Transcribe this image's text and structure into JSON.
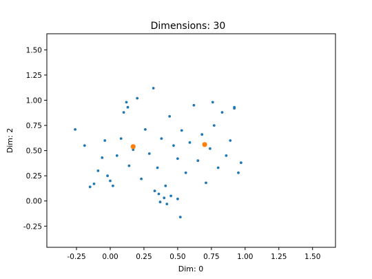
{
  "chart_data": {
    "type": "scatter",
    "title": "Dimensions: 30",
    "xlabel": "Dim: 0",
    "ylabel": "Dim: 2",
    "xlim": [
      -0.47,
      1.67
    ],
    "ylim": [
      -0.46,
      1.66
    ],
    "xticks": [
      "-0.25",
      "0.00",
      "0.25",
      "0.50",
      "0.75",
      "1.00",
      "1.25",
      "1.50"
    ],
    "yticks": [
      "-0.25",
      "0.00",
      "0.25",
      "0.50",
      "0.75",
      "1.00",
      "1.25",
      "1.50"
    ],
    "grid": false,
    "colors": {
      "points": "#1f77b4",
      "highlight": "#ff7f0e"
    },
    "series": [
      {
        "name": "",
        "color": "#1f77b4",
        "x": [
          -0.26,
          -0.19,
          -0.15,
          -0.12,
          -0.09,
          -0.06,
          -0.04,
          -0.02,
          0.0,
          0.02,
          0.05,
          0.08,
          0.1,
          0.12,
          0.14,
          0.17,
          0.2,
          0.23,
          0.26,
          0.29,
          0.32,
          0.35,
          0.38,
          0.41,
          0.44,
          0.47,
          0.5,
          0.53,
          0.56,
          0.59,
          0.62,
          0.65,
          0.68,
          0.71,
          0.74,
          0.77,
          0.8,
          0.83,
          0.86,
          0.89,
          0.92,
          0.95,
          0.97,
          0.37,
          0.4,
          0.42,
          0.45,
          0.5,
          0.52,
          0.33,
          0.36,
          0.13,
          0.76,
          0.92
        ],
        "y": [
          0.71,
          0.55,
          0.14,
          0.17,
          0.3,
          0.43,
          0.6,
          0.25,
          0.2,
          0.15,
          0.45,
          0.62,
          0.88,
          0.98,
          0.35,
          0.51,
          1.02,
          0.22,
          0.71,
          0.47,
          1.12,
          0.33,
          0.62,
          0.15,
          0.84,
          0.55,
          0.42,
          0.7,
          0.28,
          0.58,
          0.95,
          0.4,
          0.66,
          0.18,
          0.52,
          0.75,
          0.33,
          0.88,
          0.45,
          0.6,
          0.93,
          0.28,
          0.38,
          -0.01,
          0.03,
          -0.03,
          0.05,
          0.02,
          -0.16,
          0.1,
          0.07,
          0.93,
          0.98,
          0.92
        ]
      },
      {
        "name": "",
        "color": "#ff7f0e",
        "x": [
          0.17,
          0.7
        ],
        "y": [
          0.54,
          0.56
        ]
      }
    ]
  }
}
